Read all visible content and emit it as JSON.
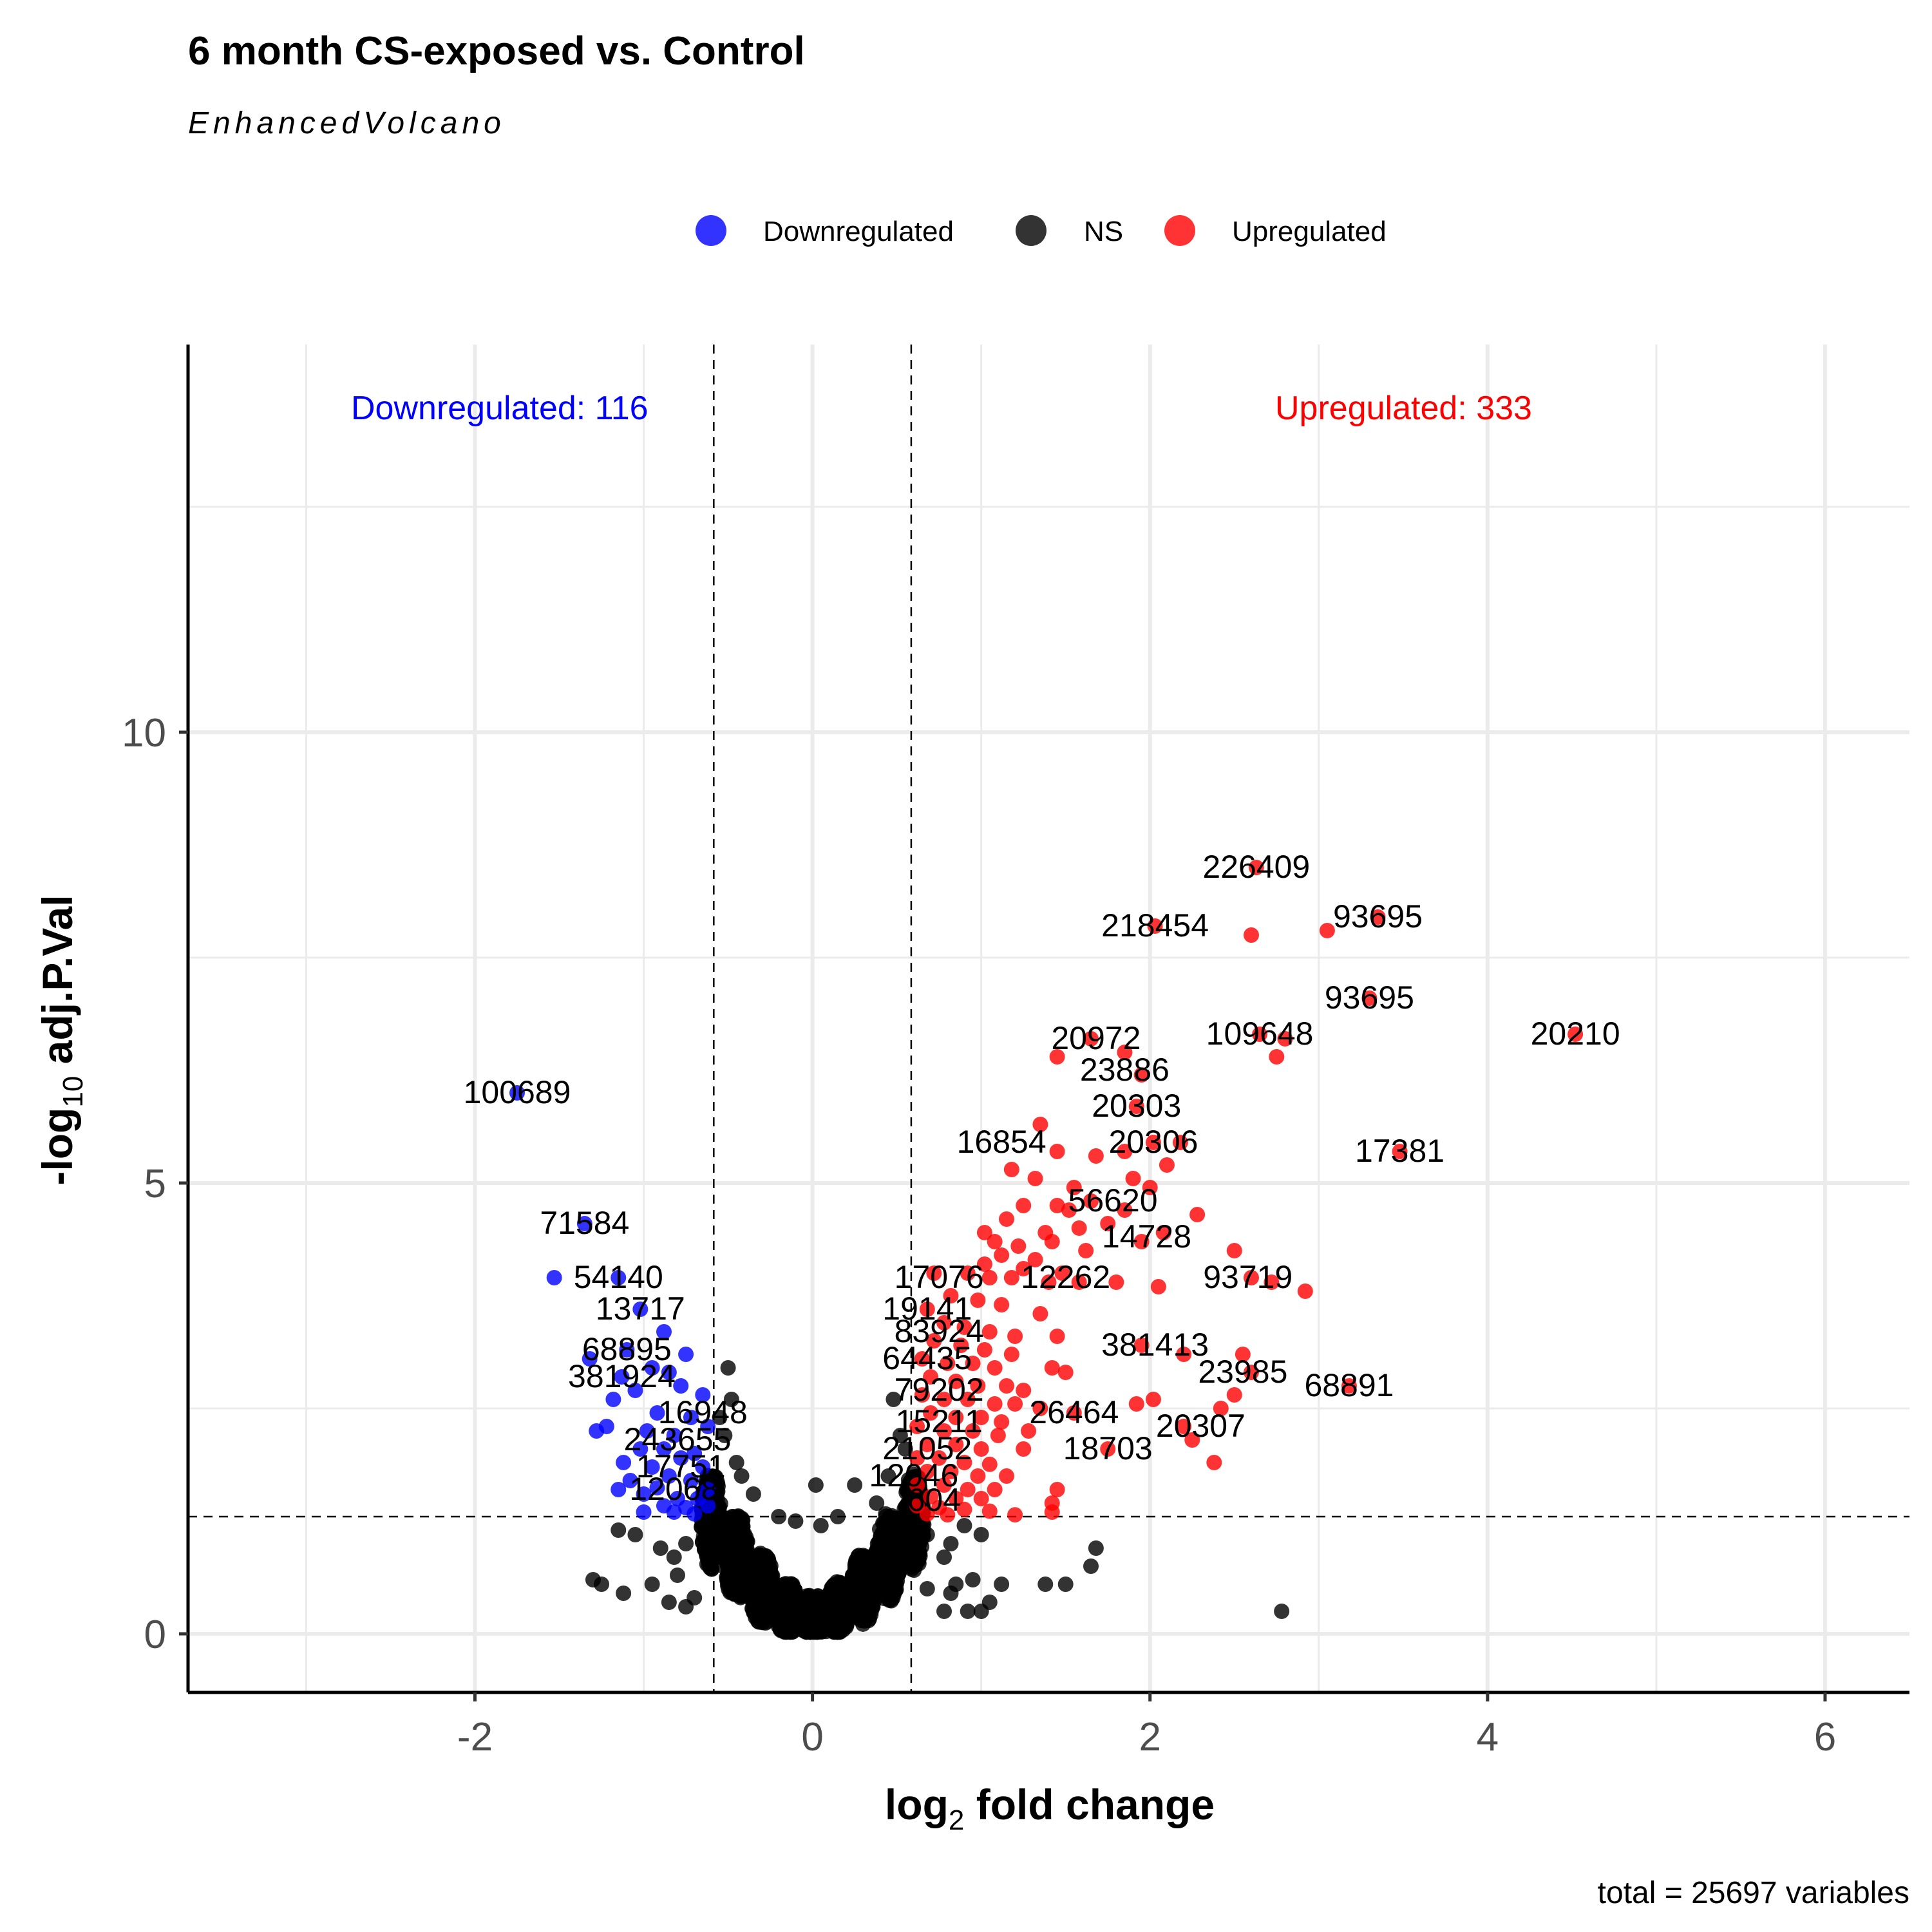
{
  "chart_data": {
    "type": "scatter",
    "title": "6 month CS-exposed vs. Control",
    "subtitle": "EnhancedVolcano",
    "xlabel_main": "log",
    "xlabel_sub": "2",
    "xlabel_rest": " fold change",
    "ylabel_pre": "-log",
    "ylabel_sub": "10",
    "ylabel_rest": " adj.P.Val",
    "caption": "total = 25697 variables",
    "xlim": [
      -3.7,
      6.5
    ],
    "ylim": [
      -0.65,
      14.3
    ],
    "x_ticks": [
      -2,
      0,
      2,
      4,
      6
    ],
    "y_ticks": [
      0,
      5,
      10
    ],
    "fc_cutoff": 0.585,
    "p_cutoff_log": 1.3,
    "legend_position": "top",
    "legend": [
      {
        "label": "Downregulated",
        "color": "#0000ff"
      },
      {
        "label": "NS",
        "color": "#000000"
      },
      {
        "label": "Upregulated",
        "color": "#ff0000"
      }
    ],
    "counts": {
      "down_label": "Downregulated:  116",
      "up_label": "Upregulated:  333",
      "down_color": "#0000ff",
      "up_color": "#ff0000"
    },
    "series": [
      {
        "name": "Downregulated",
        "color": "#0000ff",
        "points": [
          [
            -1.75,
            6.0
          ],
          [
            -1.35,
            4.55
          ],
          [
            -1.53,
            3.95
          ],
          [
            -1.15,
            3.95
          ],
          [
            -1.02,
            3.6
          ],
          [
            -0.88,
            3.35
          ],
          [
            -1.1,
            3.15
          ],
          [
            -0.75,
            3.1
          ],
          [
            -1.32,
            3.05
          ],
          [
            -0.95,
            2.95
          ],
          [
            -1.13,
            2.85
          ],
          [
            -0.85,
            2.9
          ],
          [
            -1.05,
            2.7
          ],
          [
            -0.78,
            2.75
          ],
          [
            -1.18,
            2.6
          ],
          [
            -0.65,
            2.65
          ],
          [
            -0.92,
            2.45
          ],
          [
            -1.22,
            2.3
          ],
          [
            -0.72,
            2.4
          ],
          [
            -1.28,
            2.25
          ],
          [
            -0.98,
            2.25
          ],
          [
            -0.82,
            2.2
          ],
          [
            -0.62,
            2.3
          ],
          [
            -1.02,
            2.05
          ],
          [
            -0.88,
            2.05
          ],
          [
            -0.7,
            2.0
          ],
          [
            -1.12,
            1.9
          ],
          [
            -0.78,
            1.95
          ],
          [
            -0.95,
            1.85
          ],
          [
            -0.65,
            1.85
          ],
          [
            -1.08,
            1.7
          ],
          [
            -0.85,
            1.75
          ],
          [
            -0.72,
            1.7
          ],
          [
            -1.15,
            1.6
          ],
          [
            -0.92,
            1.62
          ],
          [
            -0.62,
            1.6
          ],
          [
            -1.0,
            1.55
          ],
          [
            -0.8,
            1.5
          ],
          [
            -0.68,
            1.5
          ],
          [
            -0.88,
            1.42
          ],
          [
            -0.75,
            1.4
          ],
          [
            -0.62,
            1.42
          ],
          [
            -1.0,
            1.35
          ],
          [
            -0.82,
            1.35
          ],
          [
            -0.7,
            1.33
          ]
        ]
      },
      {
        "name": "Upregulated",
        "color": "#ff0000",
        "points": [
          [
            2.63,
            8.5
          ],
          [
            2.6,
            7.75
          ],
          [
            2.03,
            7.85
          ],
          [
            3.05,
            7.8
          ],
          [
            3.35,
            7.95
          ],
          [
            3.3,
            7.05
          ],
          [
            2.65,
            6.65
          ],
          [
            2.8,
            6.6
          ],
          [
            2.75,
            6.4
          ],
          [
            4.52,
            6.65
          ],
          [
            1.85,
            6.45
          ],
          [
            1.45,
            6.4
          ],
          [
            1.65,
            6.6
          ],
          [
            1.95,
            6.2
          ],
          [
            1.92,
            5.85
          ],
          [
            1.35,
            5.65
          ],
          [
            1.45,
            5.35
          ],
          [
            1.68,
            5.3
          ],
          [
            1.85,
            5.35
          ],
          [
            2.02,
            5.45
          ],
          [
            2.18,
            5.45
          ],
          [
            3.48,
            5.35
          ],
          [
            1.18,
            5.15
          ],
          [
            1.32,
            5.05
          ],
          [
            1.55,
            4.95
          ],
          [
            1.9,
            5.05
          ],
          [
            2.1,
            5.2
          ],
          [
            2.0,
            4.95
          ],
          [
            1.25,
            4.75
          ],
          [
            1.45,
            4.75
          ],
          [
            1.52,
            4.7
          ],
          [
            1.65,
            4.8
          ],
          [
            1.85,
            4.7
          ],
          [
            2.28,
            4.65
          ],
          [
            1.15,
            4.6
          ],
          [
            1.02,
            4.45
          ],
          [
            1.38,
            4.45
          ],
          [
            1.58,
            4.5
          ],
          [
            1.75,
            4.55
          ],
          [
            2.08,
            4.45
          ],
          [
            1.08,
            4.35
          ],
          [
            1.22,
            4.3
          ],
          [
            1.42,
            4.35
          ],
          [
            1.62,
            4.25
          ],
          [
            1.95,
            4.35
          ],
          [
            1.12,
            4.2
          ],
          [
            1.32,
            4.15
          ],
          [
            2.5,
            4.25
          ],
          [
            1.02,
            4.1
          ],
          [
            1.25,
            4.05
          ],
          [
            1.48,
            4.0
          ],
          [
            0.72,
            4.0
          ],
          [
            0.92,
            4.0
          ],
          [
            1.05,
            3.95
          ],
          [
            1.18,
            3.95
          ],
          [
            1.4,
            3.9
          ],
          [
            1.58,
            3.9
          ],
          [
            1.8,
            3.9
          ],
          [
            2.05,
            3.85
          ],
          [
            2.6,
            3.95
          ],
          [
            2.72,
            3.9
          ],
          [
            2.92,
            3.8
          ],
          [
            0.82,
            3.75
          ],
          [
            0.98,
            3.7
          ],
          [
            1.12,
            3.65
          ],
          [
            1.35,
            3.55
          ],
          [
            0.68,
            3.6
          ],
          [
            0.78,
            3.45
          ],
          [
            0.9,
            3.4
          ],
          [
            1.05,
            3.35
          ],
          [
            1.2,
            3.3
          ],
          [
            1.45,
            3.3
          ],
          [
            0.72,
            3.25
          ],
          [
            0.88,
            3.2
          ],
          [
            1.02,
            3.15
          ],
          [
            1.18,
            3.1
          ],
          [
            1.95,
            3.2
          ],
          [
            2.2,
            3.1
          ],
          [
            2.55,
            3.1
          ],
          [
            0.65,
            3.05
          ],
          [
            0.8,
            3.0
          ],
          [
            0.95,
            3.0
          ],
          [
            1.08,
            2.95
          ],
          [
            1.42,
            2.95
          ],
          [
            1.5,
            2.9
          ],
          [
            2.6,
            2.9
          ],
          [
            0.7,
            2.85
          ],
          [
            0.85,
            2.8
          ],
          [
            0.98,
            2.75
          ],
          [
            1.15,
            2.75
          ],
          [
            1.25,
            2.7
          ],
          [
            3.18,
            2.75
          ],
          [
            0.65,
            2.65
          ],
          [
            0.78,
            2.6
          ],
          [
            0.92,
            2.6
          ],
          [
            1.08,
            2.55
          ],
          [
            1.2,
            2.55
          ],
          [
            1.35,
            2.5
          ],
          [
            1.92,
            2.55
          ],
          [
            2.02,
            2.6
          ],
          [
            2.42,
            2.5
          ],
          [
            2.5,
            2.65
          ],
          [
            0.7,
            2.45
          ],
          [
            0.85,
            2.4
          ],
          [
            1.0,
            2.4
          ],
          [
            1.12,
            2.35
          ],
          [
            1.55,
            2.45
          ],
          [
            0.62,
            2.3
          ],
          [
            0.78,
            2.25
          ],
          [
            0.95,
            2.25
          ],
          [
            1.1,
            2.2
          ],
          [
            1.28,
            2.25
          ],
          [
            2.2,
            2.3
          ],
          [
            2.25,
            2.15
          ],
          [
            0.68,
            2.1
          ],
          [
            0.85,
            2.1
          ],
          [
            1.0,
            2.05
          ],
          [
            1.25,
            2.05
          ],
          [
            1.75,
            2.05
          ],
          [
            0.62,
            1.95
          ],
          [
            0.75,
            1.95
          ],
          [
            0.9,
            1.9
          ],
          [
            1.05,
            1.88
          ],
          [
            2.38,
            1.9
          ],
          [
            0.68,
            1.8
          ],
          [
            0.82,
            1.8
          ],
          [
            0.98,
            1.75
          ],
          [
            1.15,
            1.75
          ],
          [
            0.62,
            1.65
          ],
          [
            0.78,
            1.65
          ],
          [
            0.92,
            1.6
          ],
          [
            1.08,
            1.6
          ],
          [
            1.45,
            1.6
          ],
          [
            0.7,
            1.52
          ],
          [
            0.85,
            1.5
          ],
          [
            1.0,
            1.5
          ],
          [
            1.42,
            1.45
          ],
          [
            0.62,
            1.42
          ],
          [
            0.75,
            1.4
          ],
          [
            0.9,
            1.38
          ],
          [
            1.05,
            1.36
          ],
          [
            0.68,
            1.33
          ],
          [
            0.8,
            1.32
          ],
          [
            1.2,
            1.32
          ],
          [
            1.42,
            1.35
          ]
        ]
      },
      {
        "name": "NS",
        "color": "#000000",
        "points": [
          [
            2.78,
            0.25
          ],
          [
            1.65,
            0.75
          ],
          [
            1.68,
            0.95
          ],
          [
            1.5,
            0.55
          ],
          [
            1.38,
            0.55
          ],
          [
            1.12,
            0.55
          ],
          [
            1.05,
            0.35
          ],
          [
            0.95,
            0.6
          ],
          [
            0.85,
            0.55
          ],
          [
            0.82,
            0.45
          ],
          [
            0.78,
            0.25
          ],
          [
            0.92,
            0.25
          ],
          [
            1.0,
            0.25
          ],
          [
            0.68,
            0.5
          ],
          [
            1.0,
            1.1
          ],
          [
            0.82,
            1.0
          ],
          [
            0.9,
            1.2
          ],
          [
            0.78,
            0.85
          ],
          [
            0.68,
            1.1
          ],
          [
            -1.15,
            1.15
          ],
          [
            -1.05,
            1.1
          ],
          [
            -1.25,
            0.55
          ],
          [
            -1.3,
            0.6
          ],
          [
            -1.12,
            0.45
          ],
          [
            -0.95,
            0.55
          ],
          [
            -0.9,
            0.95
          ],
          [
            -0.82,
            0.85
          ],
          [
            -0.85,
            0.35
          ],
          [
            -0.75,
            0.3
          ],
          [
            -0.8,
            0.65
          ],
          [
            -0.75,
            1.0
          ],
          [
            -0.7,
            0.4
          ],
          [
            0.25,
            1.65
          ],
          [
            0.45,
            1.75
          ],
          [
            0.02,
            1.65
          ],
          [
            0.52,
            2.2
          ],
          [
            0.48,
            2.6
          ],
          [
            0.55,
            2.05
          ],
          [
            -0.5,
            2.95
          ],
          [
            -0.48,
            2.6
          ],
          [
            -0.55,
            2.4
          ],
          [
            -0.52,
            2.2
          ],
          [
            -0.45,
            1.9
          ],
          [
            -0.42,
            1.75
          ],
          [
            -0.35,
            1.55
          ],
          [
            0.38,
            1.45
          ],
          [
            -0.2,
            1.3
          ],
          [
            0.15,
            1.3
          ],
          [
            -0.1,
            1.25
          ],
          [
            0.05,
            1.2
          ]
        ]
      }
    ],
    "ns_cloud": [
      [
        -0.6,
        1.25,
        0.06,
        0.55
      ],
      [
        -0.45,
        0.85,
        0.07,
        0.5
      ],
      [
        -0.3,
        0.5,
        0.07,
        0.4
      ],
      [
        -0.15,
        0.28,
        0.07,
        0.3
      ],
      [
        0.0,
        0.2,
        0.08,
        0.25
      ],
      [
        0.15,
        0.28,
        0.07,
        0.3
      ],
      [
        0.3,
        0.5,
        0.07,
        0.4
      ],
      [
        0.45,
        0.85,
        0.07,
        0.5
      ],
      [
        0.6,
        1.25,
        0.06,
        0.55
      ]
    ],
    "point_labels": [
      {
        "text": "226409",
        "x": 2.63,
        "y": 8.5
      },
      {
        "text": "93695",
        "x": 3.35,
        "y": 7.95
      },
      {
        "text": "218454",
        "x": 2.03,
        "y": 7.85
      },
      {
        "text": "93695",
        "x": 3.3,
        "y": 7.05
      },
      {
        "text": "20972",
        "x": 1.68,
        "y": 6.6
      },
      {
        "text": "109648",
        "x": 2.65,
        "y": 6.65
      },
      {
        "text": "20210",
        "x": 4.52,
        "y": 6.65
      },
      {
        "text": "23886",
        "x": 1.85,
        "y": 6.25
      },
      {
        "text": "100689",
        "x": -1.75,
        "y": 6.0
      },
      {
        "text": "20303",
        "x": 1.92,
        "y": 5.85
      },
      {
        "text": "16854",
        "x": 1.12,
        "y": 5.45
      },
      {
        "text": "20306",
        "x": 2.02,
        "y": 5.45
      },
      {
        "text": "17381",
        "x": 3.48,
        "y": 5.35
      },
      {
        "text": "56620",
        "x": 1.78,
        "y": 4.8
      },
      {
        "text": "71584",
        "x": -1.35,
        "y": 4.55
      },
      {
        "text": "14728",
        "x": 1.98,
        "y": 4.4
      },
      {
        "text": "54140",
        "x": -1.15,
        "y": 3.95
      },
      {
        "text": "17076",
        "x": 0.75,
        "y": 3.95
      },
      {
        "text": "12262",
        "x": 1.5,
        "y": 3.95
      },
      {
        "text": "93719",
        "x": 2.58,
        "y": 3.95
      },
      {
        "text": "13717",
        "x": -1.02,
        "y": 3.6
      },
      {
        "text": "19141",
        "x": 0.68,
        "y": 3.6
      },
      {
        "text": "83924",
        "x": 0.75,
        "y": 3.35
      },
      {
        "text": "381413",
        "x": 2.03,
        "y": 3.2
      },
      {
        "text": "68895",
        "x": -1.1,
        "y": 3.15
      },
      {
        "text": "64435",
        "x": 0.68,
        "y": 3.05
      },
      {
        "text": "381924",
        "x": -1.13,
        "y": 2.85
      },
      {
        "text": "23985",
        "x": 2.55,
        "y": 2.9
      },
      {
        "text": "68891",
        "x": 3.18,
        "y": 2.75
      },
      {
        "text": "79202",
        "x": 0.75,
        "y": 2.7
      },
      {
        "text": "26464",
        "x": 1.55,
        "y": 2.45
      },
      {
        "text": "16948",
        "x": -0.65,
        "y": 2.45
      },
      {
        "text": "15211",
        "x": 0.75,
        "y": 2.35
      },
      {
        "text": "20307",
        "x": 2.3,
        "y": 2.3
      },
      {
        "text": "243655",
        "x": -0.8,
        "y": 2.15
      },
      {
        "text": "21052",
        "x": 0.68,
        "y": 2.05
      },
      {
        "text": "18703",
        "x": 1.75,
        "y": 2.05
      },
      {
        "text": "17751",
        "x": -0.78,
        "y": 1.85
      },
      {
        "text": "12046",
        "x": 0.6,
        "y": 1.75
      },
      {
        "text": "12068",
        "x": -0.82,
        "y": 1.6
      },
      {
        "text": "604",
        "x": 0.72,
        "y": 1.48
      }
    ]
  }
}
